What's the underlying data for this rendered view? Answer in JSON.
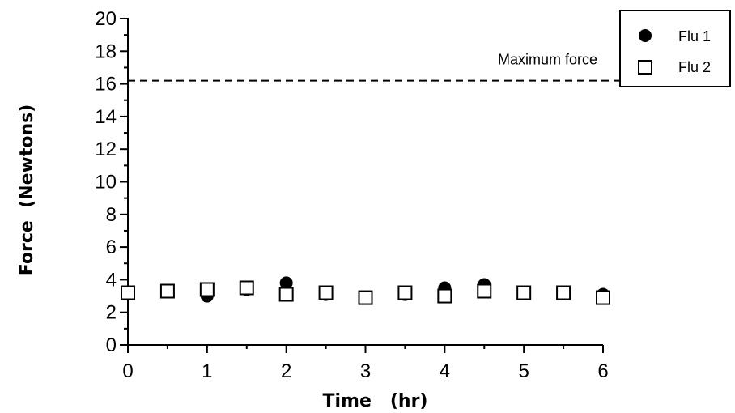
{
  "chart_data": {
    "type": "scatter",
    "title": "",
    "xlabel": "Time (hr)",
    "ylabel": "Force (Newtons)",
    "xlim": [
      0,
      6
    ],
    "ylim": [
      0,
      20
    ],
    "xticks": [
      0,
      1,
      2,
      3,
      4,
      5,
      6
    ],
    "yticks": [
      0,
      2,
      4,
      6,
      8,
      10,
      12,
      14,
      16,
      18,
      20
    ],
    "grid": false,
    "legend_position": "top-right",
    "series": [
      {
        "name": "Flu 1",
        "marker": "filled-circle",
        "color": "#000000",
        "x": [
          0,
          0.5,
          1,
          1.5,
          2,
          2.5,
          3,
          3.5,
          4,
          4.5,
          5,
          5.5,
          6
        ],
        "y": [
          3.2,
          3.3,
          3.0,
          3.4,
          3.8,
          3.1,
          2.9,
          3.1,
          3.5,
          3.7,
          3.2,
          3.2,
          3.1
        ]
      },
      {
        "name": "Flu 2",
        "marker": "open-square",
        "color": "#000000",
        "x": [
          0,
          0.5,
          1,
          1.5,
          2,
          2.5,
          3,
          3.5,
          4,
          4.5,
          5,
          5.5,
          6
        ],
        "y": [
          3.2,
          3.3,
          3.4,
          3.5,
          3.1,
          3.2,
          2.9,
          3.2,
          3.0,
          3.3,
          3.2,
          3.2,
          2.9
        ]
      }
    ],
    "reference_line": {
      "label": "Maximum force",
      "y": 16.2,
      "style": "dashed"
    }
  }
}
